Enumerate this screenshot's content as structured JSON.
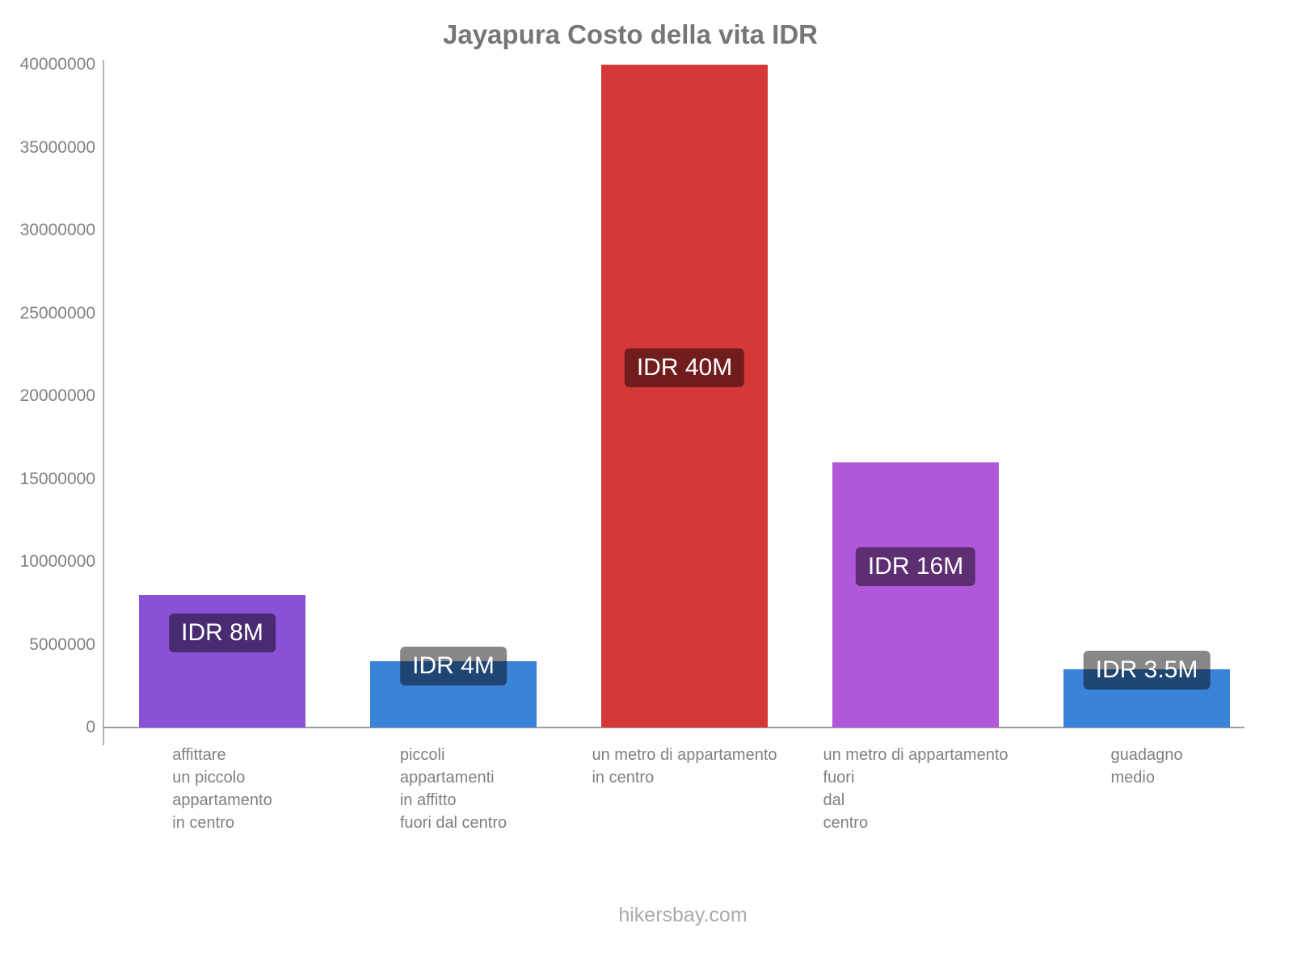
{
  "title": "Jayapura Costo della vita IDR",
  "footer": "hikersbay.com",
  "chart_data": {
    "type": "bar",
    "title": "Jayapura Costo della vita IDR",
    "categories": [
      "affittare\nun piccolo\nappartamento\nin centro",
      "piccoli\nappartamenti\nin affitto\nfuori dal centro",
      "un metro di appartamento\nin centro",
      "un metro di appartamento\nfuori\ndal\ncentro",
      "guadagno\nmedio"
    ],
    "values": [
      8000000,
      4000000,
      40000000,
      16000000,
      3500000
    ],
    "bar_labels": [
      "IDR 8M",
      "IDR 4M",
      "IDR 40M",
      "IDR 16M",
      "IDR 3.5M"
    ],
    "bar_colors": [
      "#8952d6",
      "#3b82d9",
      "#d53838",
      "#b158da",
      "#3b82d9"
    ],
    "badge_overlay_color": "rgba(0,0,0,0.47)",
    "text_color": "#808080",
    "xlabel": "",
    "ylabel": "",
    "ylim": [
      0,
      40000000
    ],
    "yticks": [
      0,
      5000000,
      10000000,
      15000000,
      20000000,
      25000000,
      30000000,
      35000000,
      40000000
    ],
    "grid": false,
    "legend": false
  }
}
